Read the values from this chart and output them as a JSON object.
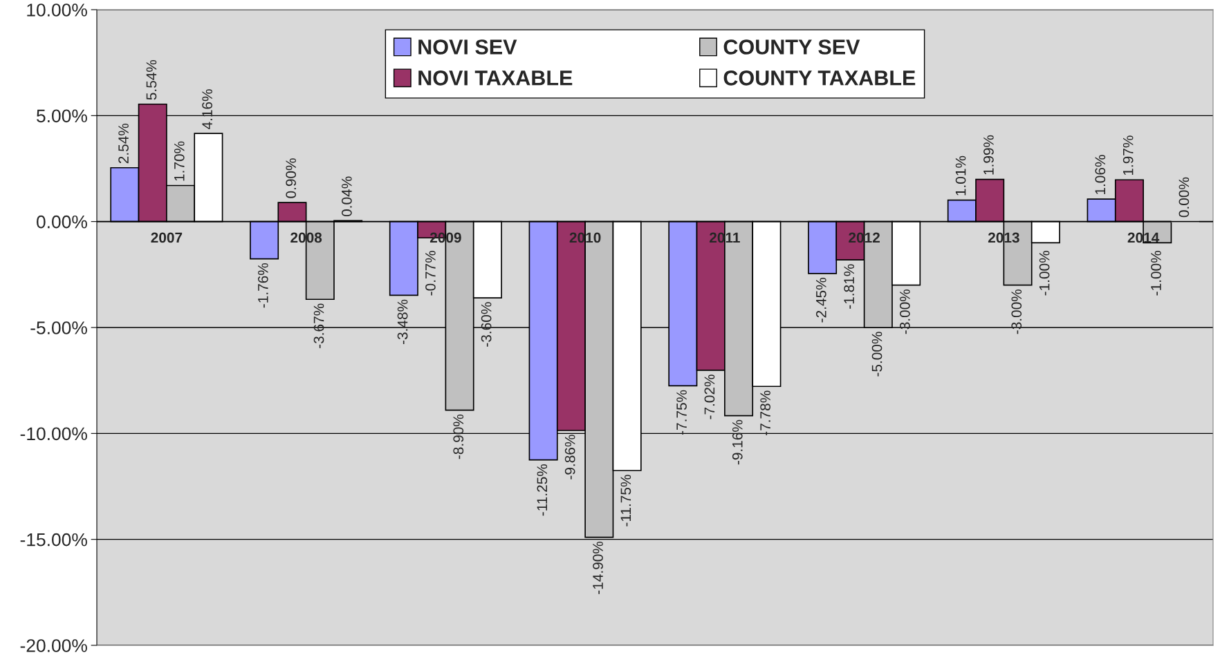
{
  "chart_data": {
    "type": "bar",
    "categories": [
      "2007",
      "2008",
      "2009",
      "2010",
      "2011",
      "2012",
      "2013",
      "2014"
    ],
    "series": [
      {
        "name": "NOVI SEV",
        "color": "#9999ff",
        "values": [
          2.54,
          -1.76,
          -3.48,
          -11.25,
          -7.75,
          -2.45,
          1.01,
          1.06
        ],
        "value_labels": [
          "2.54%",
          "-1.76%",
          "-3.48%",
          "-11.25%",
          "-7.75%",
          "-2.45%",
          "1.01%",
          "1.06%"
        ]
      },
      {
        "name": "NOVI TAXABLE",
        "color": "#993366",
        "values": [
          5.54,
          0.9,
          -0.77,
          -9.86,
          -7.02,
          -1.81,
          1.99,
          1.97
        ],
        "value_labels": [
          "5.54%",
          "0.90%",
          "-0.77%",
          "-9.86%",
          "-7.02%",
          "-1.81%",
          "1.99%",
          "1.97%"
        ]
      },
      {
        "name": "COUNTY SEV",
        "color": "#c0c0c0",
        "values": [
          1.7,
          -3.67,
          -8.9,
          -14.9,
          -9.16,
          -5.0,
          -3.0,
          -1.0
        ],
        "value_labels": [
          "1.70%",
          "-3.67%",
          "-8.90%",
          "-14.90%",
          "-9.16%",
          "-5.00%",
          "-3.00%",
          "-1.00%"
        ]
      },
      {
        "name": "COUNTY TAXABLE",
        "color": "#ffffff",
        "values": [
          4.16,
          0.04,
          -3.6,
          -11.75,
          -7.78,
          -3.0,
          -1.0,
          0.0
        ],
        "value_labels": [
          "4.16%",
          "0.04%",
          "-3.60%",
          "-11.75%",
          "-7.78%",
          "-3.00%",
          "-1.00%",
          "0.00%"
        ]
      }
    ],
    "ylim": [
      -20,
      10
    ],
    "yticks": [
      {
        "value": -20,
        "label": "-20.00%"
      },
      {
        "value": -15,
        "label": "-15.00%"
      },
      {
        "value": -10,
        "label": "-10.00%"
      },
      {
        "value": -5,
        "label": "-5.00%"
      },
      {
        "value": 0,
        "label": "0.00%"
      },
      {
        "value": 5,
        "label": "5.00%"
      },
      {
        "value": 10,
        "label": "10.00%"
      }
    ],
    "grid": "y",
    "legend": "top"
  }
}
